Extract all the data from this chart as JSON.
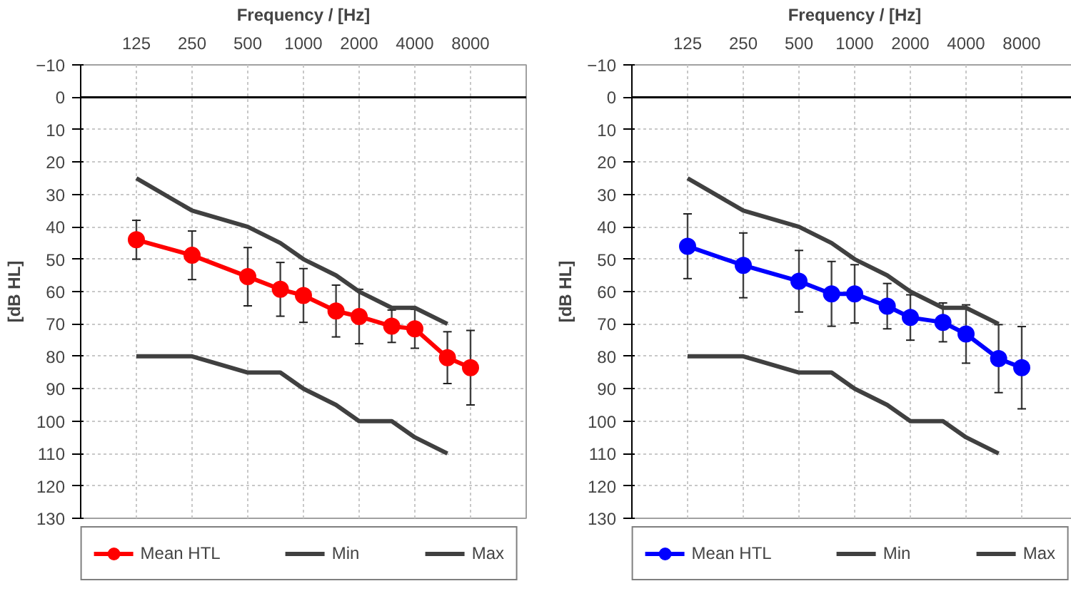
{
  "chart_data": [
    {
      "type": "line",
      "xlabel": "Frequency / [Hz]",
      "ylabel": "[dB HL]",
      "log": "x",
      "grid": true,
      "legend": "bottom",
      "x": [
        125,
        250,
        500,
        750,
        1000,
        1500,
        2000,
        3000,
        4000,
        6000,
        8000
      ],
      "xlim": [
        62.5,
        16000
      ],
      "xticks": [
        125,
        250,
        500,
        1000,
        2000,
        4000,
        8000
      ],
      "ylim": [
        130,
        -10
      ],
      "yticks": [
        -10,
        0,
        10,
        20,
        30,
        40,
        50,
        60,
        70,
        80,
        90,
        100,
        110,
        120,
        130
      ],
      "ref_lines": [
        {
          "axis": "y",
          "value": 0,
          "color": "#000000"
        }
      ],
      "series": [
        {
          "name": "Mean HTL",
          "color": "#ff0000",
          "marker": "circle",
          "values": [
            44,
            48.8,
            55.4,
            59.3,
            61.2,
            66,
            67.7,
            70.7,
            71.5,
            80.4,
            83.5
          ],
          "errors": [
            6,
            7.5,
            9,
            8.3,
            8.3,
            8,
            8.4,
            5,
            6,
            8,
            11.5
          ]
        },
        {
          "name": "Min",
          "color": "#404040",
          "marker": "none",
          "x": [
            125,
            250,
            500,
            750,
            1000,
            1500,
            2000,
            3000,
            4000,
            6000
          ],
          "values": [
            25,
            35,
            40,
            45,
            50,
            55,
            60,
            65,
            65,
            70
          ]
        },
        {
          "name": "Max",
          "color": "#404040",
          "marker": "none",
          "x": [
            125,
            250,
            500,
            750,
            1000,
            1500,
            2000,
            3000,
            4000,
            6000
          ],
          "values": [
            80,
            80,
            85,
            85,
            90,
            95,
            100,
            100,
            105,
            110
          ]
        }
      ]
    },
    {
      "type": "line",
      "xlabel": "Frequency / [Hz]",
      "ylabel": "[dB HL]",
      "log": "x",
      "grid": true,
      "legend": "bottom",
      "x": [
        125,
        250,
        500,
        750,
        1000,
        1500,
        2000,
        3000,
        4000,
        6000,
        8000
      ],
      "xlim": [
        62.5,
        16000
      ],
      "xticks": [
        125,
        250,
        500,
        1000,
        2000,
        4000,
        8000
      ],
      "ylim": [
        130,
        -10
      ],
      "yticks": [
        -10,
        0,
        10,
        20,
        30,
        40,
        50,
        60,
        70,
        80,
        90,
        100,
        110,
        120,
        130
      ],
      "ref_lines": [
        {
          "axis": "y",
          "value": 0,
          "color": "#000000"
        }
      ],
      "series": [
        {
          "name": "Mean HTL",
          "color": "#0000ff",
          "marker": "circle",
          "values": [
            46,
            51.9,
            56.8,
            60.7,
            60.7,
            64.5,
            68,
            69.5,
            73.1,
            80.7,
            83.5
          ],
          "errors": [
            10,
            10,
            9.5,
            10,
            9,
            7,
            7,
            6,
            9,
            10.5,
            12.7
          ]
        },
        {
          "name": "Min",
          "color": "#404040",
          "marker": "none",
          "x": [
            125,
            250,
            500,
            750,
            1000,
            1500,
            2000,
            3000,
            4000,
            6000
          ],
          "values": [
            25,
            35,
            40,
            45,
            50,
            55,
            60,
            65,
            65,
            70
          ]
        },
        {
          "name": "Max",
          "color": "#404040",
          "marker": "none",
          "x": [
            125,
            250,
            500,
            750,
            1000,
            1500,
            2000,
            3000,
            4000,
            6000
          ],
          "values": [
            80,
            80,
            85,
            85,
            90,
            95,
            100,
            100,
            105,
            110
          ]
        }
      ]
    }
  ]
}
